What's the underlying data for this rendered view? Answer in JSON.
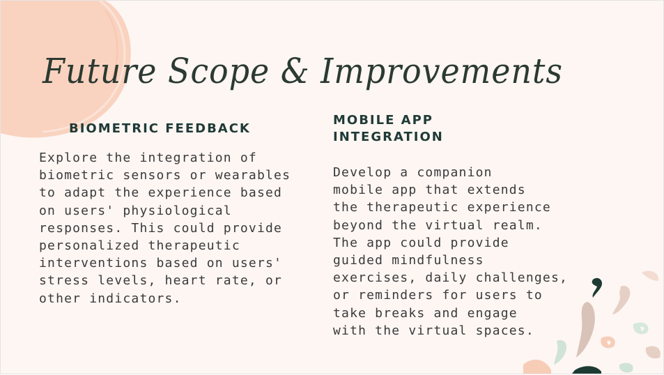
{
  "slide": {
    "title": "Future Scope & Improvements",
    "columns": [
      {
        "heading": "BIOMETRIC FEEDBACK",
        "body": "Explore the integration of\nbiometric sensors or wearables\nto adapt the experience based\non users' physiological\nresponses. This could provide\npersonalized therapeutic\ninterventions based on users'\nstress levels, heart rate, or\nother indicators."
      },
      {
        "heading": "MOBILE APP\nINTEGRATION",
        "body": "Develop a companion\nmobile app that extends\nthe therapeutic experience\nbeyond the virtual realm.\nThe app could provide\nguided mindfulness\nexercises, daily challenges,\nor reminders for users to\ntake breaks and engage\nwith the virtual spaces."
      }
    ]
  },
  "colors": {
    "background": "#fdf6f3",
    "accent_peach": "#f7cdb8",
    "heading": "#1f3a36",
    "text": "#3a3a3a",
    "dark_green": "#1e3b33",
    "mint": "#cfe3d6",
    "taupe": "#d9c2b8"
  },
  "icons": [
    "peach-brush-circle",
    "confetti-shapes"
  ]
}
